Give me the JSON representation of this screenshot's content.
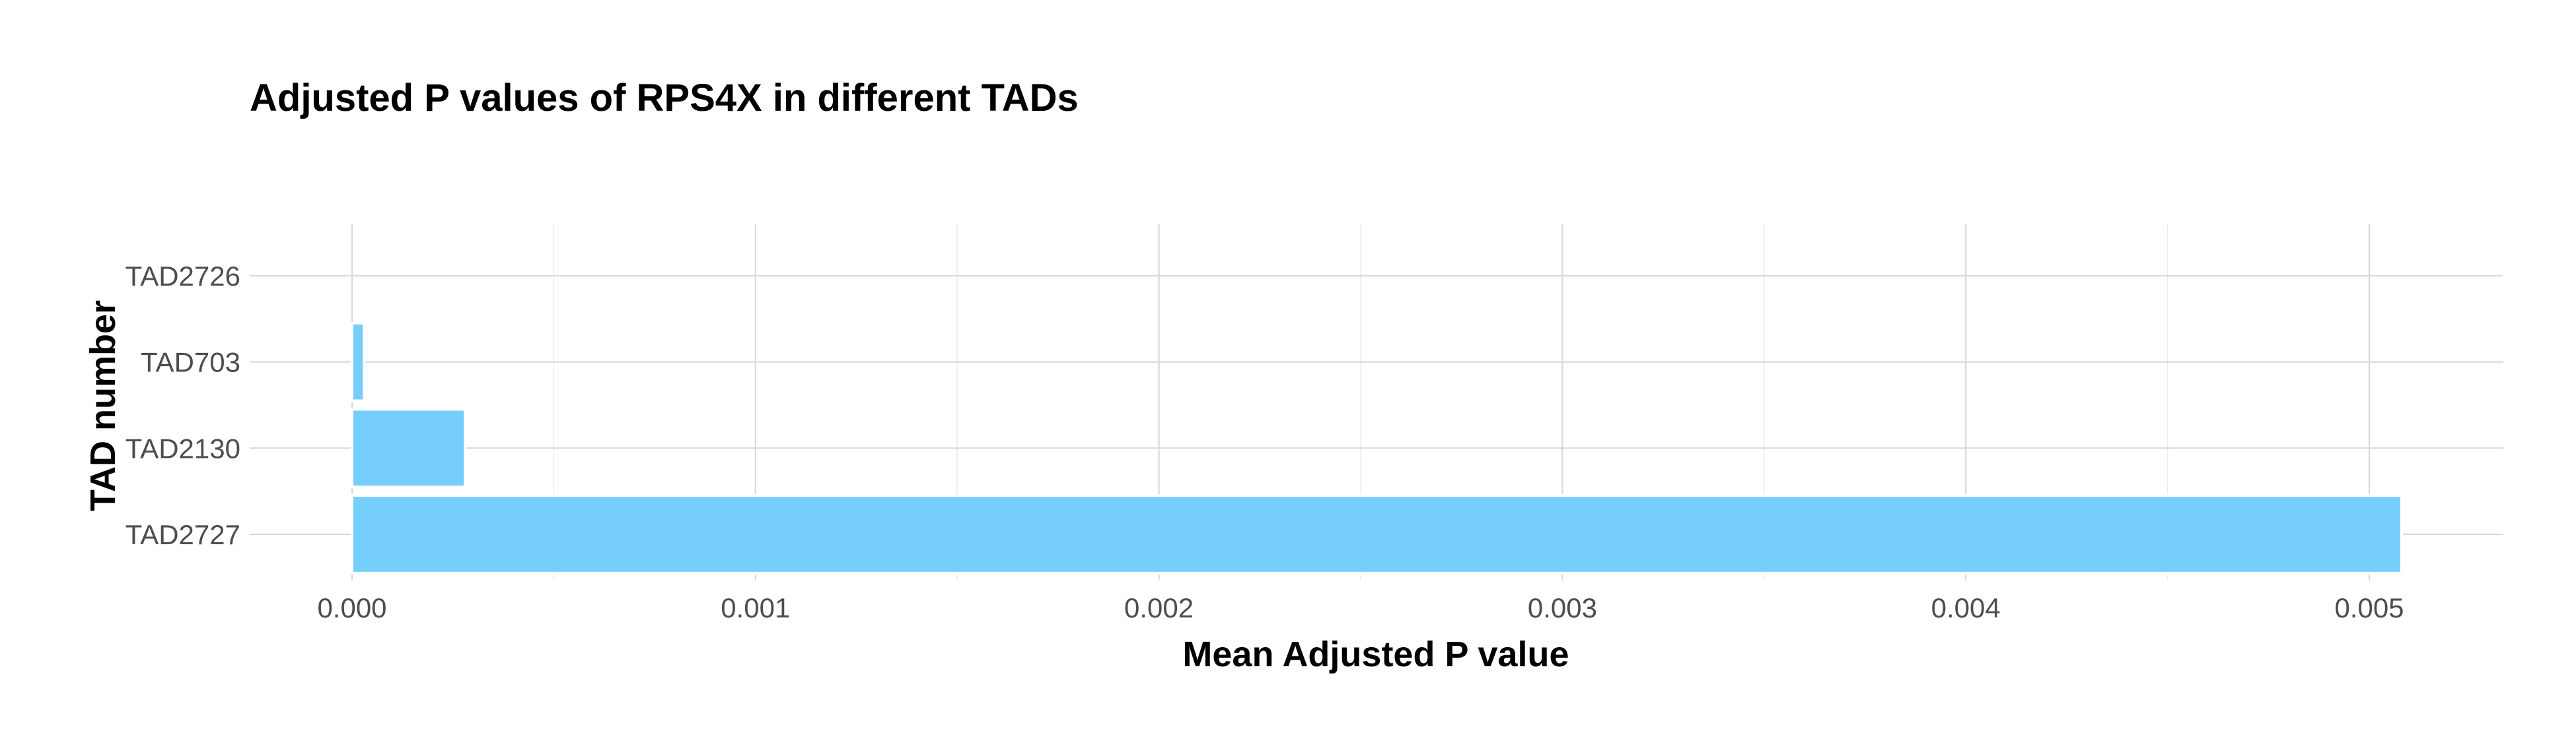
{
  "chart_data": {
    "type": "bar",
    "orientation": "horizontal",
    "title": "Adjusted P values of RPS4X in different TADs",
    "xlabel": "Mean Adjusted P value",
    "ylabel": "TAD number",
    "categories": [
      "TAD2727",
      "TAD2130",
      "TAD703",
      "TAD2726"
    ],
    "values": [
      0.00508,
      0.00028,
      3e-05,
      0.0
    ],
    "xlim": [
      0.0,
      0.0053
    ],
    "x_ticks": [
      0.0,
      0.001,
      0.002,
      0.003,
      0.004,
      0.005
    ],
    "x_tick_labels": [
      "0.000",
      "0.001",
      "0.002",
      "0.003",
      "0.004",
      "0.005"
    ],
    "grid": true,
    "legend": "none",
    "bar_color": "#75CEFC",
    "grid_color": "#D9D9D9"
  }
}
